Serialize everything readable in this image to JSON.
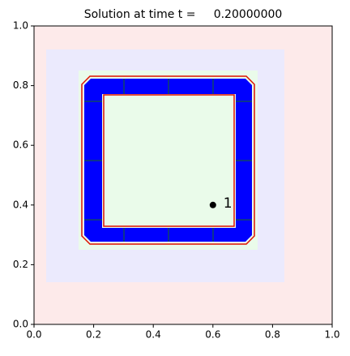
{
  "chart_data": {
    "type": "scatter",
    "title": "Solution at time t =     0.20000000",
    "x": [
      0.6
    ],
    "values": [
      0.4
    ],
    "annotations": [
      "1"
    ],
    "color": "#000000",
    "xlim": [
      0,
      1
    ],
    "ylim": [
      0,
      1
    ],
    "xticks": [
      {
        "value": 0,
        "label": "0.0"
      },
      0.2,
      0.4,
      0.6,
      0.8,
      {
        "value": 1,
        "label": "1.0"
      }
    ],
    "yticks": [
      {
        "value": 0,
        "label": "0.0"
      },
      0.2,
      0.4,
      0.6,
      0.8,
      {
        "value": 1,
        "label": "1.0"
      }
    ]
  }
}
